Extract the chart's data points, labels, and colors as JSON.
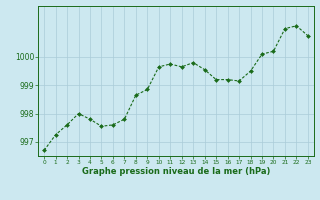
{
  "x": [
    0,
    1,
    2,
    3,
    4,
    5,
    6,
    7,
    8,
    9,
    10,
    11,
    12,
    13,
    14,
    15,
    16,
    17,
    18,
    19,
    20,
    21,
    22,
    23
  ],
  "y": [
    996.7,
    997.25,
    997.6,
    998.0,
    997.8,
    997.55,
    997.6,
    997.8,
    998.65,
    998.85,
    999.65,
    999.75,
    999.65,
    999.8,
    999.55,
    999.2,
    999.2,
    999.15,
    999.5,
    1000.1,
    1000.2,
    1001.0,
    1001.1,
    1000.75
  ],
  "line_color": "#1a6b1a",
  "marker_color": "#1a6b1a",
  "bg_color": "#cce8f0",
  "grid_color": "#aaccd8",
  "xlabel": "Graphe pression niveau de la mer (hPa)",
  "xlabel_color": "#1a6b1a",
  "tick_color": "#1a6b1a",
  "ylim": [
    996.5,
    1001.8
  ],
  "yticks": [
    997,
    998,
    999,
    1000
  ],
  "xlim": [
    -0.5,
    23.5
  ],
  "xticks": [
    0,
    1,
    2,
    3,
    4,
    5,
    6,
    7,
    8,
    9,
    10,
    11,
    12,
    13,
    14,
    15,
    16,
    17,
    18,
    19,
    20,
    21,
    22,
    23
  ]
}
